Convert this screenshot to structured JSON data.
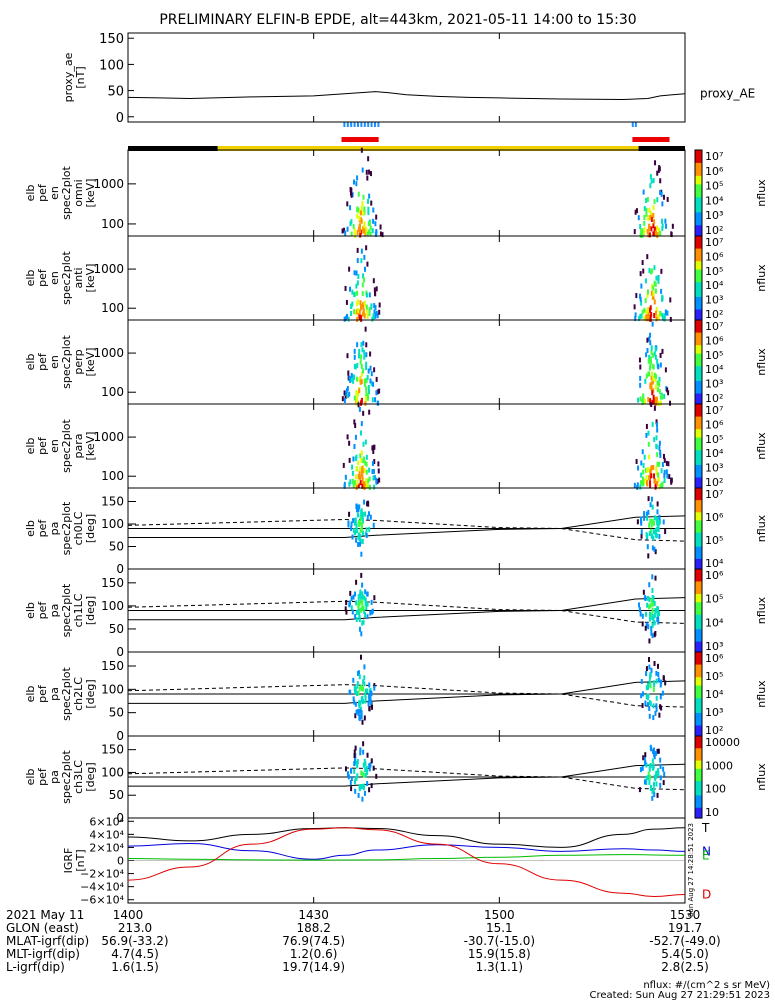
{
  "title": "PRELIMINARY ELFIN-B EPDE, alt=443km, 2021-05-11 14:00 to 15:30",
  "chart_data": [
    {
      "type": "line",
      "panel": "proxy_ae",
      "ylabel": [
        "proxy_ae",
        "[nT]"
      ],
      "ylim": [
        -10,
        160
      ],
      "yticks": [
        "150",
        "100",
        "50",
        "0"
      ],
      "series": [
        {
          "name": "proxy_AE",
          "x": [
            0,
            5,
            10,
            20,
            30,
            35,
            40,
            42,
            45,
            50,
            55,
            60,
            70,
            80,
            84,
            86,
            88,
            90
          ],
          "y": [
            37,
            36,
            35,
            38,
            40,
            44,
            48,
            46,
            42,
            39,
            37,
            36,
            34,
            33,
            35,
            40,
            42,
            44
          ]
        }
      ]
    },
    {
      "type": "heatmap",
      "panel": "omni",
      "ylabel": [
        "elb",
        "pef",
        "en",
        "spec2plot",
        "omni",
        "[keV]"
      ],
      "yscale": "log",
      "yticks": [
        "1000",
        "100"
      ],
      "zlabel": "nflux",
      "zticks": [
        "10⁷",
        "10⁶",
        "10⁵",
        "10⁴",
        "10³",
        "10²"
      ]
    },
    {
      "type": "heatmap",
      "panel": "anti",
      "ylabel": [
        "elb",
        "pef",
        "en",
        "spec2plot",
        "anti",
        "[keV]"
      ],
      "yscale": "log",
      "yticks": [
        "1000",
        "100"
      ],
      "zlabel": "nflux",
      "zticks": [
        "10⁷",
        "10⁶",
        "10⁵",
        "10⁴",
        "10³",
        "10²"
      ]
    },
    {
      "type": "heatmap",
      "panel": "perp",
      "ylabel": [
        "elb",
        "pef",
        "en",
        "spec2plot",
        "perp",
        "[keV]"
      ],
      "yscale": "log",
      "yticks": [
        "1000",
        "100"
      ],
      "zlabel": "nflux",
      "zticks": [
        "10⁷",
        "10⁶",
        "10⁵",
        "10⁴",
        "10³",
        "10²"
      ]
    },
    {
      "type": "heatmap",
      "panel": "para",
      "ylabel": [
        "elb",
        "pef",
        "en",
        "spec2plot",
        "para",
        "[keV]"
      ],
      "yscale": "log",
      "yticks": [
        "1000",
        "100"
      ],
      "zlabel": "nflux",
      "zticks": [
        "10⁷",
        "10⁶",
        "10⁵",
        "10⁴",
        "10³",
        "10²"
      ]
    },
    {
      "type": "heatmap",
      "panel": "ch0LC",
      "ylabel": [
        "elb",
        "pef",
        "pa",
        "spec2plot",
        "ch0LC",
        "[deg]"
      ],
      "ylim": [
        0,
        180
      ],
      "yticks": [
        "150",
        "100",
        "50",
        "0"
      ],
      "zlabel": "nflux",
      "zticks": [
        "10⁷",
        "10⁶",
        "10⁵",
        "10⁴"
      ]
    },
    {
      "type": "heatmap",
      "panel": "ch1LC",
      "ylabel": [
        "elb",
        "pef",
        "pa",
        "spec2plot",
        "ch1LC",
        "[deg]"
      ],
      "ylim": [
        0,
        180
      ],
      "yticks": [
        "150",
        "100",
        "50",
        "0"
      ],
      "zlabel": "nflux",
      "zticks": [
        "10⁶",
        "10⁵",
        "10⁴",
        "10³"
      ]
    },
    {
      "type": "heatmap",
      "panel": "ch2LC",
      "ylabel": [
        "elb",
        "pef",
        "pa",
        "spec2plot",
        "ch2LC",
        "[deg]"
      ],
      "ylim": [
        0,
        180
      ],
      "yticks": [
        "150",
        "100",
        "50",
        "0"
      ],
      "zlabel": "nflux",
      "zticks": [
        "10⁶",
        "10⁵",
        "10⁴",
        "10³",
        "10²"
      ]
    },
    {
      "type": "heatmap",
      "panel": "ch3LC",
      "ylabel": [
        "elb",
        "pef",
        "pa",
        "spec2plot",
        "ch3LC",
        "[deg]"
      ],
      "ylim": [
        0,
        180
      ],
      "yticks": [
        "150",
        "100",
        "50",
        "0"
      ],
      "zlabel": "nflux",
      "zticks": [
        "10000",
        "1000",
        "100",
        "10"
      ]
    },
    {
      "type": "line",
      "panel": "IGRF",
      "ylabel": [
        "IGRF",
        "[nT]"
      ],
      "ylim": [
        -65000,
        65000
      ],
      "yticks": [
        {
          "v": 60000,
          "label": "6×10⁴"
        },
        {
          "v": 40000,
          "label": "4×10⁴"
        },
        {
          "v": 20000,
          "label": "2×10⁴"
        },
        {
          "v": 0,
          "label": "0"
        },
        {
          "v": -20000,
          "label": "−2×10⁴"
        },
        {
          "v": -40000,
          "label": "−4×10⁴"
        },
        {
          "v": -60000,
          "label": "−6×10⁴"
        }
      ],
      "series": [
        {
          "name": "T",
          "color": "#000000",
          "x": [
            0,
            10,
            20,
            30,
            35,
            40,
            50,
            60,
            70,
            80,
            85,
            90
          ],
          "y": [
            36000,
            30000,
            40000,
            49000,
            50000,
            49000,
            38000,
            25000,
            20000,
            40000,
            48000,
            50000
          ]
        },
        {
          "name": "N",
          "color": "#0000dd",
          "x": [
            0,
            10,
            20,
            30,
            35,
            40,
            50,
            60,
            70,
            80,
            85,
            90
          ],
          "y": [
            22000,
            26000,
            15000,
            2000,
            8000,
            16000,
            24000,
            20000,
            14000,
            18000,
            16000,
            14000
          ]
        },
        {
          "name": "E",
          "color": "#00bb00",
          "x": [
            0,
            10,
            20,
            30,
            40,
            50,
            60,
            70,
            80,
            90
          ],
          "y": [
            3000,
            2000,
            1000,
            500,
            1000,
            3000,
            5000,
            8000,
            9000,
            8000
          ]
        },
        {
          "name": "D",
          "color": "#dd0000",
          "x": [
            0,
            10,
            20,
            30,
            35,
            40,
            50,
            60,
            70,
            80,
            85,
            90
          ],
          "y": [
            -30000,
            -10000,
            25000,
            48000,
            50000,
            47000,
            25000,
            -5000,
            -30000,
            -50000,
            -55000,
            -52000
          ]
        }
      ]
    }
  ],
  "xaxis": {
    "ticks": [
      {
        "t": 0,
        "label": "1400"
      },
      {
        "t": 30,
        "label": "1430"
      },
      {
        "t": 60,
        "label": "1500"
      },
      {
        "t": 90,
        "label": "1530"
      }
    ],
    "rows": [
      {
        "name": "2021 May 11",
        "values": [
          "",
          "",
          "",
          ""
        ]
      },
      {
        "name": "GLON (east)",
        "values": [
          "213.0",
          "188.2",
          "15.1",
          "191.7"
        ]
      },
      {
        "name": "MLAT-igrf(dip)",
        "values": [
          "56.9(-33.2)",
          "76.9(74.5)",
          "-30.7(-15.0)",
          "-52.7(-49.0)"
        ]
      },
      {
        "name": "MLT-igrf(dip)",
        "values": [
          "4.7(4.5)",
          "1.2(0.6)",
          "15.9(15.8)",
          "5.4(5.0)"
        ]
      },
      {
        "name": "L-igrf(dip)",
        "values": [
          "1.6(1.5)",
          "19.7(14.9)",
          "1.3(1.1)",
          "2.8(2.5)"
        ]
      }
    ]
  },
  "footer": {
    "units": "nflux: #/(cm^2 s sr MeV)",
    "created": "Created: Sun Aug 27 21:29:51 2023",
    "side_stamp": "Sun Aug 27 14:28:51 2023"
  },
  "colors": {
    "state_black": "#000000",
    "state_yellow": "#f0d000",
    "science_red": "#ee0000",
    "science_blue": "#1e90ff"
  }
}
